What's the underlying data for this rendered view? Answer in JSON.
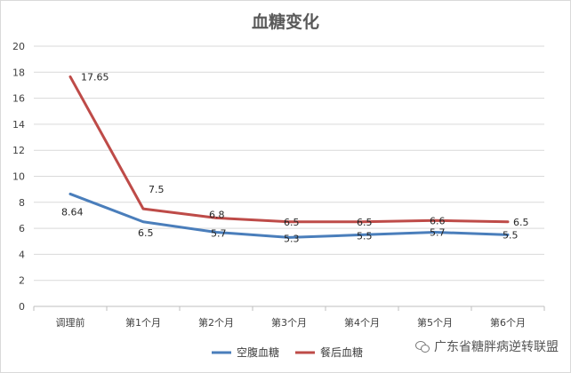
{
  "chart_data": {
    "type": "line",
    "title": "血糖变化",
    "categories": [
      "调理前",
      "第1个月",
      "第2个月",
      "第3个月",
      "第4个月",
      "第5个月",
      "第6个月"
    ],
    "series": [
      {
        "name": "空腹血糖",
        "color": "#4a7ebb",
        "values": [
          8.64,
          6.5,
          5.7,
          5.3,
          5.5,
          5.7,
          5.5
        ],
        "labels": [
          "8.64",
          "6.5",
          "5.7",
          "5.3",
          "5.5",
          "5.7",
          "5.5"
        ]
      },
      {
        "name": "餐后血糖",
        "color": "#be4b48",
        "values": [
          17.65,
          7.5,
          6.8,
          6.5,
          6.5,
          6.6,
          6.5
        ],
        "labels": [
          "17.65",
          "7.5",
          "6.8",
          "6.5",
          "6.5",
          "6.6",
          "6.5"
        ]
      }
    ],
    "ylim": [
      0,
      20
    ],
    "yticks": [
      0,
      2,
      4,
      6,
      8,
      10,
      12,
      14,
      16,
      18,
      20
    ],
    "grid": true,
    "legend": "bottom"
  },
  "watermark": {
    "text": "广东省糖胖病逆转联盟",
    "icon": "wechat-icon"
  }
}
